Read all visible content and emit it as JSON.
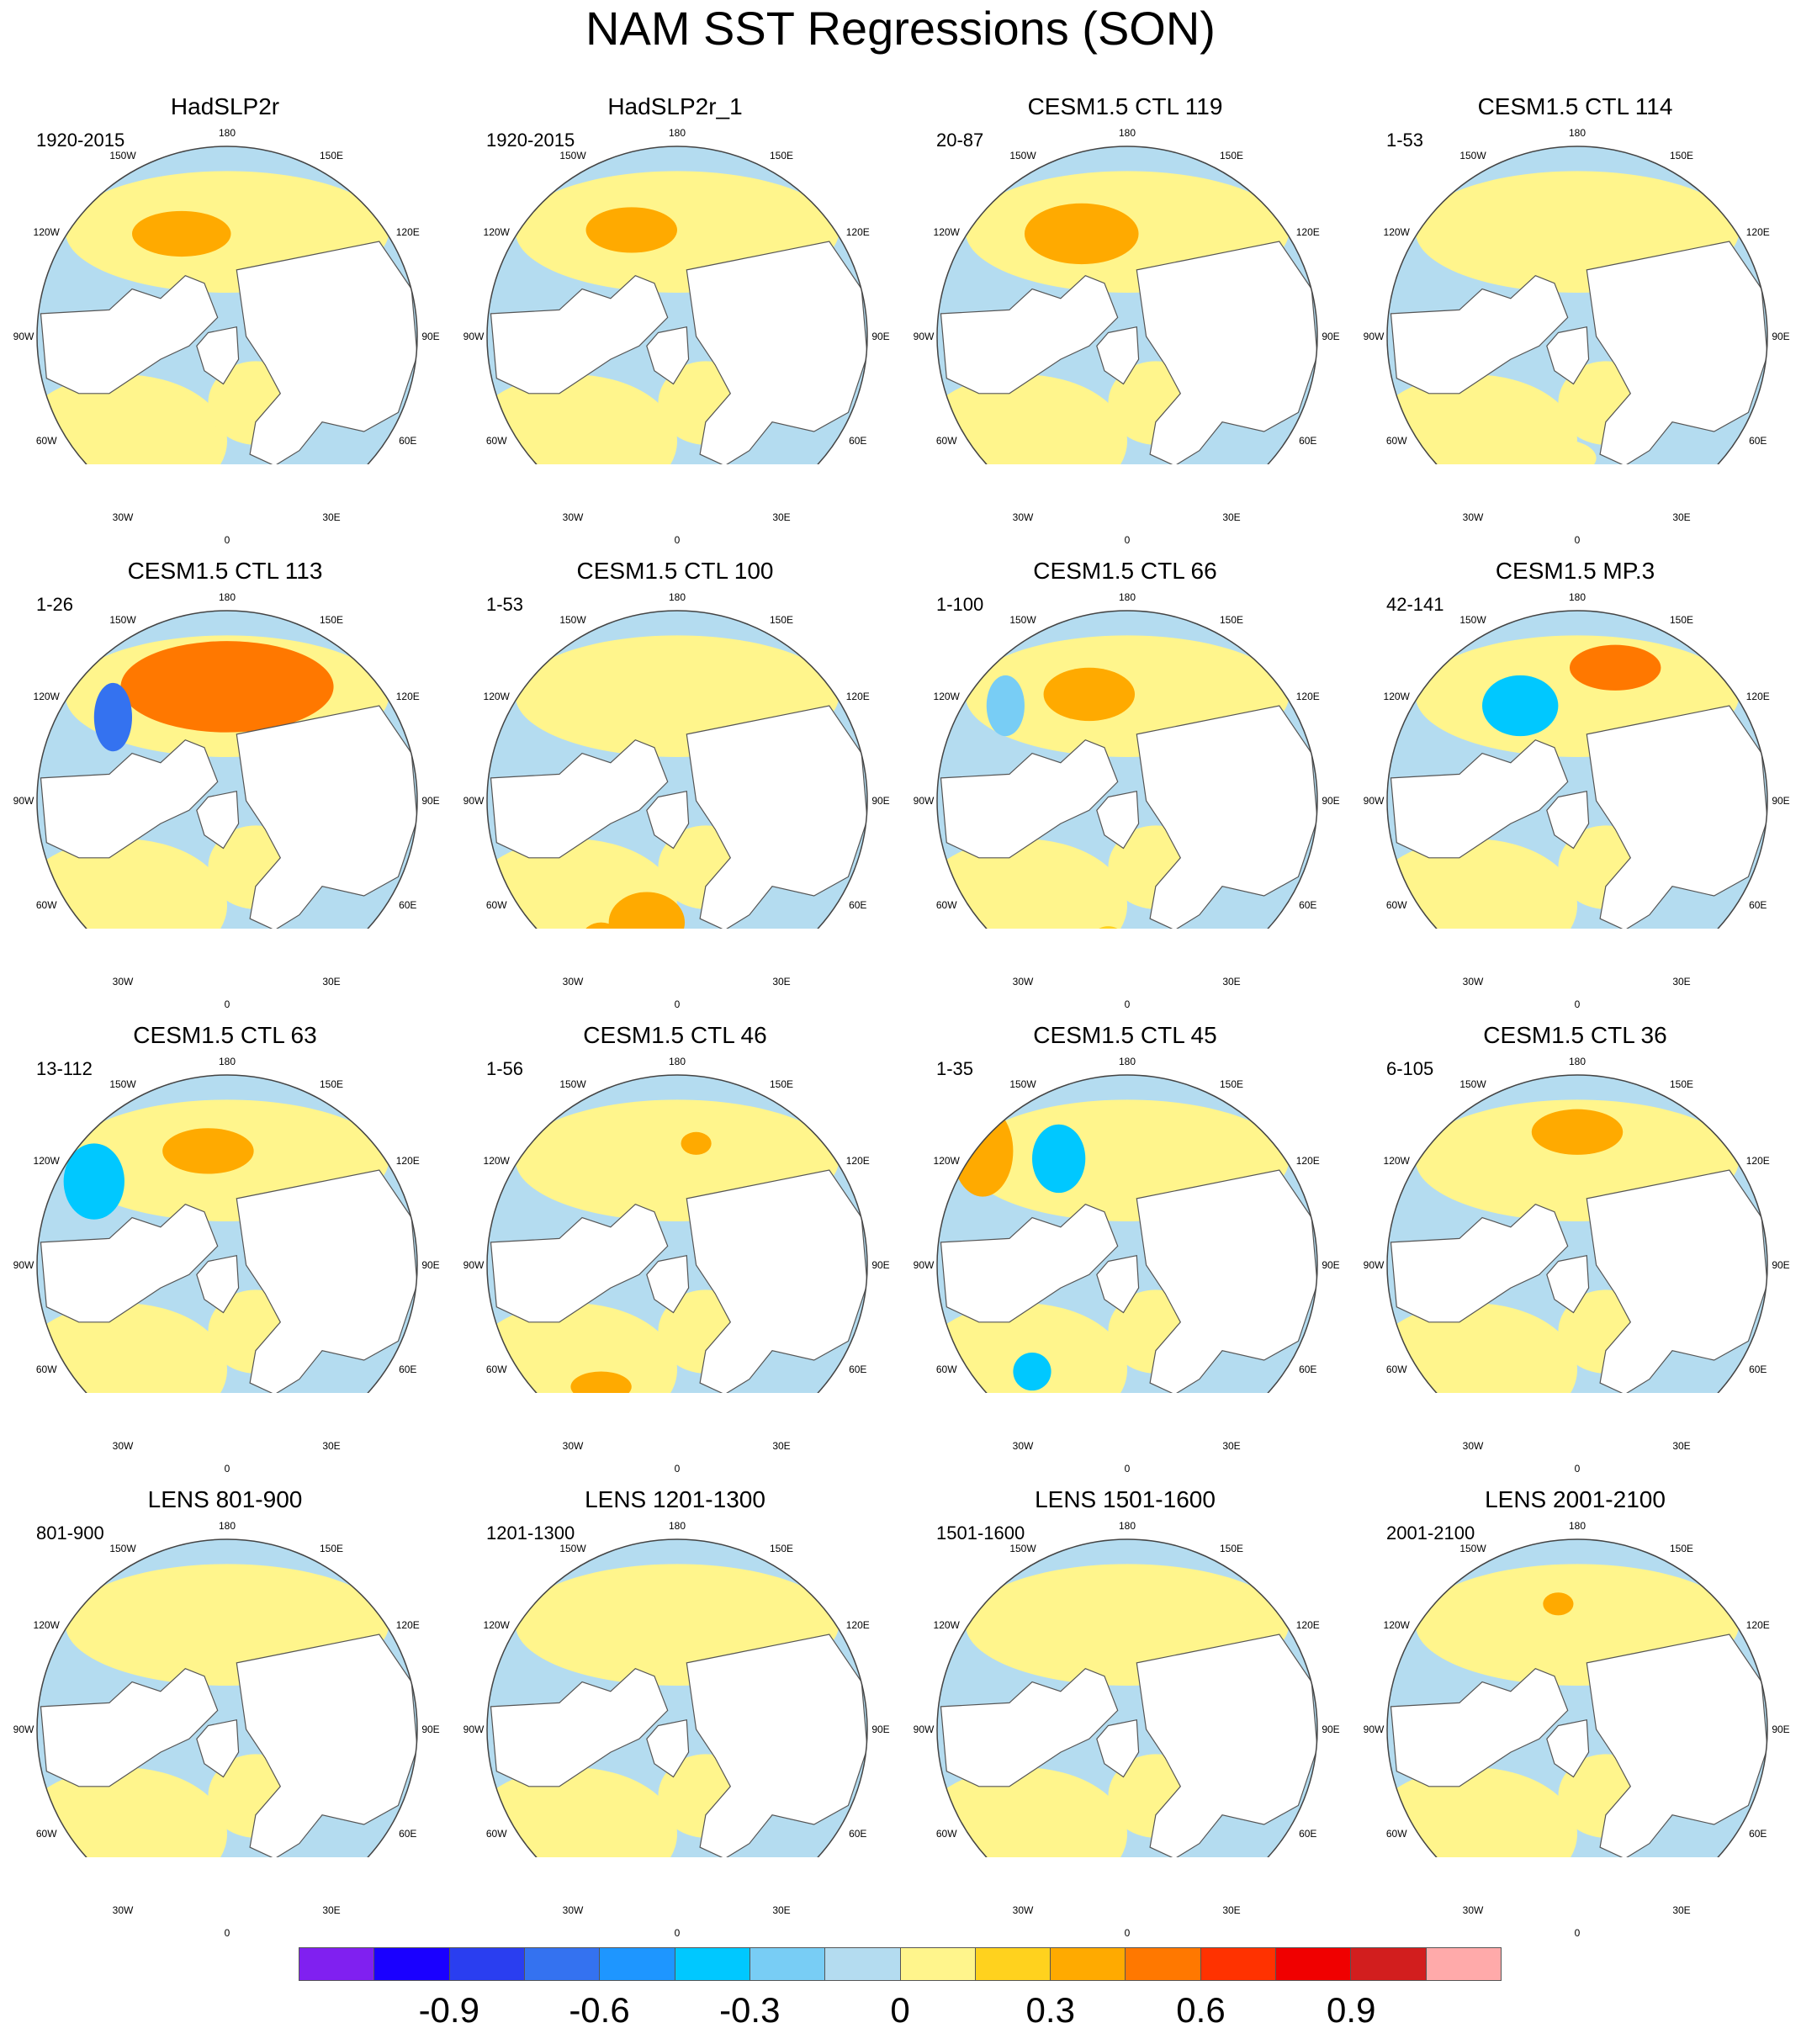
{
  "title": "NAM SST Regressions (SON)",
  "lon_labels": [
    "180",
    "150E",
    "120E",
    "90E",
    "60E",
    "30E",
    "0",
    "30W",
    "60W",
    "90W",
    "120W",
    "150W"
  ],
  "panels": [
    {
      "title": "HadSLP2r",
      "period": "1920-2015",
      "warm": [
        [
          0.38,
          0.23,
          0.13,
          0.06,
          0.38
        ]
      ],
      "cool": []
    },
    {
      "title": "HadSLP2r_1",
      "period": "1920-2015",
      "warm": [
        [
          0.38,
          0.22,
          0.12,
          0.06,
          0.38
        ]
      ],
      "cool": []
    },
    {
      "title": "CESM1.5 CTL 119",
      "period": "20-87",
      "warm": [
        [
          0.38,
          0.23,
          0.15,
          0.08,
          0.38
        ]
      ],
      "cool": []
    },
    {
      "title": "CESM1.5 CTL 114",
      "period": "1-53",
      "warm": [
        [
          0.45,
          0.82,
          0.1,
          0.05,
          0.1
        ],
        [
          0.9,
          0.12,
          0.06,
          0.04,
          0.04
        ]
      ],
      "cool": []
    },
    {
      "title": "CESM1.5 CTL 113",
      "period": "1-26",
      "warm": [
        [
          0.5,
          0.2,
          0.28,
          0.12,
          0.45
        ],
        [
          0.72,
          0.35,
          0.08,
          0.04,
          0.6
        ]
      ],
      "cool": [
        [
          0.2,
          0.28,
          0.05,
          0.09,
          -0.7
        ]
      ]
    },
    {
      "title": "CESM1.5 CTL 100",
      "period": "1-53",
      "warm": [
        [
          0.42,
          0.82,
          0.1,
          0.08,
          0.4
        ]
      ],
      "cool": [
        [
          0.3,
          0.86,
          0.05,
          0.04,
          0.3
        ]
      ]
    },
    {
      "title": "CESM1.5 CTL 66",
      "period": "1-100",
      "warm": [
        [
          0.4,
          0.22,
          0.12,
          0.07,
          0.35
        ],
        [
          0.45,
          0.9,
          0.06,
          0.07,
          0.2
        ]
      ],
      "cool": [
        [
          0.18,
          0.25,
          0.05,
          0.08,
          -0.3
        ]
      ]
    },
    {
      "title": "CESM1.5 MP.3",
      "period": "42-141",
      "warm": [
        [
          0.6,
          0.15,
          0.12,
          0.06,
          0.5
        ]
      ],
      "cool": [
        [
          0.35,
          0.25,
          0.1,
          0.08,
          -0.45
        ]
      ]
    },
    {
      "title": "CESM1.5 CTL 63",
      "period": "13-112",
      "warm": [
        [
          0.45,
          0.2,
          0.12,
          0.06,
          0.3
        ]
      ],
      "cool": [
        [
          0.15,
          0.28,
          0.08,
          0.1,
          -0.4
        ]
      ]
    },
    {
      "title": "CESM1.5 CTL 46",
      "period": "1-56",
      "warm": [
        [
          0.55,
          0.18,
          0.04,
          0.03,
          0.3
        ],
        [
          0.3,
          0.82,
          0.08,
          0.04,
          0.3
        ]
      ],
      "cool": []
    },
    {
      "title": "CESM1.5 CTL 45",
      "period": "1-35",
      "warm": [
        [
          0.12,
          0.2,
          0.08,
          0.12,
          0.3
        ]
      ],
      "cool": [
        [
          0.32,
          0.22,
          0.07,
          0.09,
          -0.35
        ],
        [
          0.25,
          0.78,
          0.05,
          0.05,
          -0.4
        ]
      ]
    },
    {
      "title": "CESM1.5 CTL 36",
      "period": "6-105",
      "warm": [
        [
          0.5,
          0.15,
          0.12,
          0.06,
          0.3
        ]
      ],
      "cool": []
    },
    {
      "title": "LENS 801-900",
      "period": "801-900",
      "warm": [],
      "cool": []
    },
    {
      "title": "LENS 1201-1300",
      "period": "1201-1300",
      "warm": [],
      "cool": []
    },
    {
      "title": "LENS 1501-1600",
      "period": "1501-1600",
      "warm": [],
      "cool": []
    },
    {
      "title": "LENS 2001-2100",
      "period": "2001-2100",
      "warm": [
        [
          0.45,
          0.17,
          0.04,
          0.03,
          0.3
        ]
      ],
      "cool": []
    }
  ],
  "colorbar": {
    "colors": [
      "#8020f0",
      "#1a00ff",
      "#2a3ef0",
      "#3472f0",
      "#1e96ff",
      "#00c8ff",
      "#78cdf5",
      "#b4dcf0",
      "#fff58c",
      "#ffd21e",
      "#ffaa00",
      "#ff7800",
      "#ff3200",
      "#f00000",
      "#d21e1e",
      "#ffaaaa"
    ],
    "labels": [
      "-0.9",
      "-0.6",
      "-0.3",
      "0",
      "0.3",
      "0.6",
      "0.9"
    ]
  },
  "colors": {
    "ocean_cool": "#b4dcf0",
    "ocean_warm": "#fff58c",
    "land": "#ffffff",
    "coast": "#555555"
  }
}
